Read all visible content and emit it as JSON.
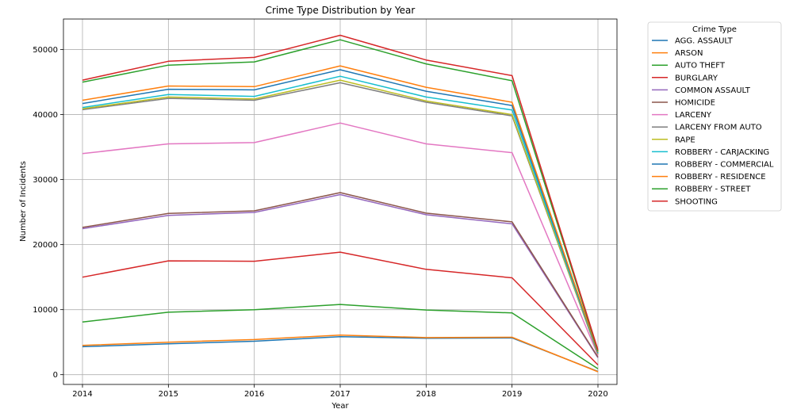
{
  "chart_data": {
    "type": "line",
    "title": "Crime Type Distribution by Year",
    "xlabel": "Year",
    "ylabel": "Number of Incidents",
    "x": [
      2014,
      2015,
      2016,
      2017,
      2018,
      2019,
      2020
    ],
    "x_ticks": [
      "2014",
      "2015",
      "2016",
      "2017",
      "2018",
      "2019",
      "2020"
    ],
    "ylim": [
      -1500,
      54700
    ],
    "y_ticks": [
      0,
      10000,
      20000,
      30000,
      40000,
      50000
    ],
    "y_tick_labels": [
      "0",
      "10000",
      "20000",
      "30000",
      "40000",
      "50000"
    ],
    "grid": true,
    "legend": {
      "title": "Crime Type",
      "placement": "outside right"
    },
    "series": [
      {
        "name": "AGG. ASSAULT",
        "color": "#1f77b4",
        "values": [
          4300,
          4750,
          5150,
          5850,
          5600,
          5650,
          500
        ]
      },
      {
        "name": "ARSON",
        "color": "#ff7f0e",
        "values": [
          4500,
          5000,
          5400,
          6100,
          5700,
          5750,
          450
        ]
      },
      {
        "name": "AUTO THEFT",
        "color": "#2ca02c",
        "values": [
          8100,
          9600,
          10000,
          10800,
          9950,
          9500,
          900
        ]
      },
      {
        "name": "BURGLARY",
        "color": "#d62728",
        "values": [
          15000,
          17500,
          17450,
          18850,
          16200,
          14900,
          1500
        ]
      },
      {
        "name": "COMMON ASSAULT",
        "color": "#9467bd",
        "values": [
          22450,
          24500,
          24950,
          27700,
          24600,
          23200,
          2600
        ]
      },
      {
        "name": "HOMICIDE",
        "color": "#8c564b",
        "values": [
          22650,
          24800,
          25200,
          28000,
          24850,
          23500,
          2700
        ]
      },
      {
        "name": "LARCENY",
        "color": "#e377c2",
        "values": [
          34000,
          35500,
          35700,
          38700,
          35500,
          34150,
          3000
        ]
      },
      {
        "name": "LARCENY FROM AUTO",
        "color": "#7f7f7f",
        "values": [
          40750,
          42500,
          42200,
          44900,
          41900,
          39800,
          3150
        ]
      },
      {
        "name": "RAPE",
        "color": "#bcbd22",
        "values": [
          40900,
          42700,
          42400,
          45300,
          42100,
          40000,
          3200
        ]
      },
      {
        "name": "ROBBERY - CARJACKING",
        "color": "#17becf",
        "values": [
          41100,
          43100,
          42800,
          45900,
          42700,
          40700,
          3300
        ]
      },
      {
        "name": "ROBBERY - COMMERCIAL",
        "color": "#1f77b4",
        "values": [
          41700,
          43900,
          43800,
          46900,
          43600,
          41400,
          3400
        ]
      },
      {
        "name": "ROBBERY - RESIDENCE",
        "color": "#ff7f0e",
        "values": [
          42200,
          44400,
          44300,
          47500,
          44200,
          41900,
          3500
        ]
      },
      {
        "name": "ROBBERY - STREET",
        "color": "#2ca02c",
        "values": [
          45000,
          47600,
          48100,
          51500,
          47800,
          45200,
          3600
        ]
      },
      {
        "name": "SHOOTING",
        "color": "#d62728",
        "values": [
          45300,
          48200,
          48800,
          52200,
          48400,
          46000,
          3800
        ]
      }
    ]
  }
}
